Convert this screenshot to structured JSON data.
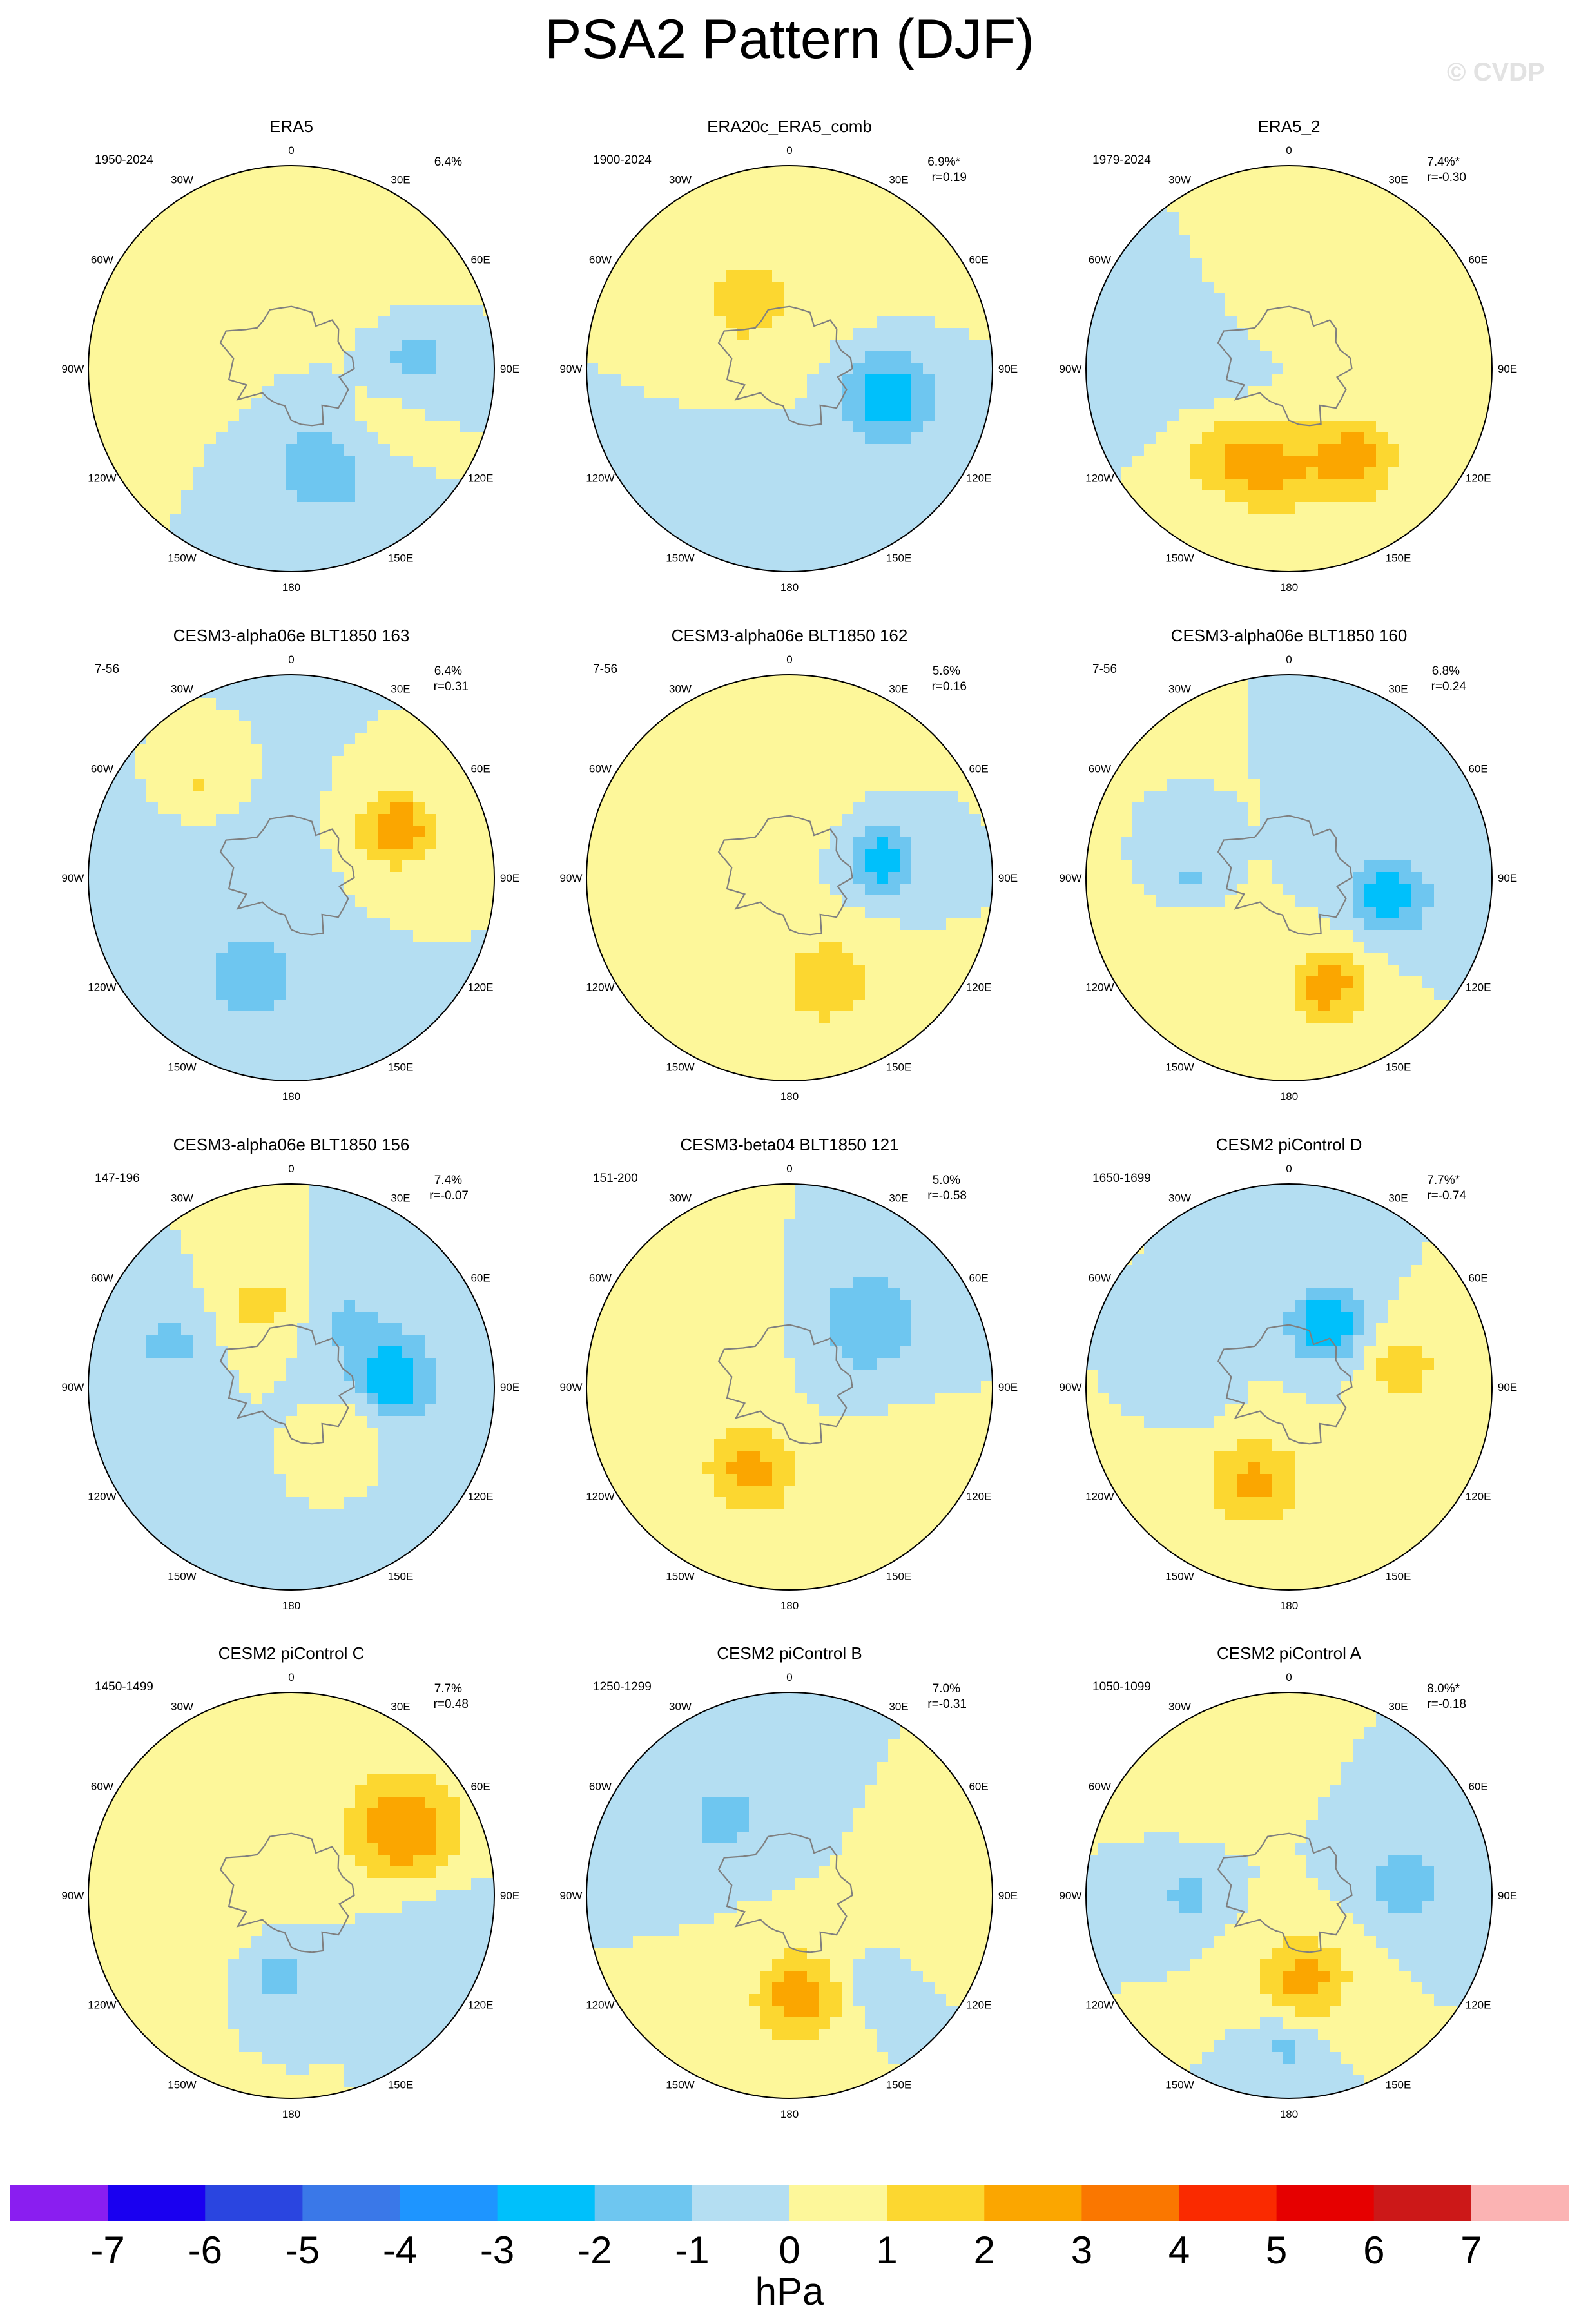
{
  "title": "PSA2 Pattern (DJF)",
  "watermark": "© CVDP",
  "lon_labels": [
    "0",
    "30E",
    "60E",
    "90E",
    "120E",
    "150E",
    "180",
    "150W",
    "120W",
    "90W",
    "60W",
    "30W"
  ],
  "chart_data": {
    "type": "heatmap",
    "projection": "south-polar-stereographic",
    "variable": "PSA2 pattern of sea level pressure regression",
    "unit_label": "hPa",
    "colorbar": {
      "ticks": [
        "-7",
        "-6",
        "-5",
        "-4",
        "-3",
        "-2",
        "-1",
        "0",
        "1",
        "2",
        "3",
        "4",
        "5",
        "6",
        "7"
      ],
      "colors": [
        "#8a1ef0",
        "#1a00f0",
        "#2a45e0",
        "#3a78e8",
        "#1e95ff",
        "#00c0fb",
        "#6ec6f0",
        "#b4def2",
        "#fdf79a",
        "#fcd730",
        "#fba600",
        "#fa7700",
        "#fa2a00",
        "#e60000",
        "#cc1818",
        "#fbb3b3"
      ]
    },
    "panels": [
      {
        "title": "ERA5",
        "years": "1950-2024",
        "pct": "6.4%",
        "corr": "",
        "base": 0,
        "blobs": [
          {
            "lon": 85,
            "lat": -48,
            "a": -1.5,
            "s": 11
          },
          {
            "lon": 160,
            "lat": -55,
            "a": -1.6,
            "s": 15
          },
          {
            "lon": 120,
            "lat": -55,
            "a": 0.8,
            "s": 12
          },
          {
            "lon": -60,
            "lat": -50,
            "a": 0.8,
            "s": 20
          },
          {
            "lon": 40,
            "lat": -45,
            "a": 0.6,
            "s": 18
          }
        ]
      },
      {
        "title": "ERA20c_ERA5_comb",
        "years": "1900-2024",
        "pct": "6.9%*",
        "corr": "r=0.19",
        "base": 0,
        "blobs": [
          {
            "lon": 105,
            "lat": -55,
            "a": -2.7,
            "s": 12
          },
          {
            "lon": -30,
            "lat": -60,
            "a": 1.4,
            "s": 8
          },
          {
            "lon": -70,
            "lat": -70,
            "a": 0.8,
            "s": 20
          },
          {
            "lon": -150,
            "lat": -45,
            "a": -0.7,
            "s": 25
          },
          {
            "lon": 30,
            "lat": -45,
            "a": 0.6,
            "s": 20
          }
        ]
      },
      {
        "title": "ERA5_2",
        "years": "1979-2024",
        "pct": "7.4%*",
        "corr": "r=-0.30",
        "base": 0,
        "blobs": [
          {
            "lon": 145,
            "lat": -52,
            "a": 2.5,
            "s": 11
          },
          {
            "lon": -170,
            "lat": -55,
            "a": 2.2,
            "s": 11
          },
          {
            "lon": -140,
            "lat": -52,
            "a": 1.5,
            "s": 10
          },
          {
            "lon": -90,
            "lat": -55,
            "a": -0.6,
            "s": 14
          },
          {
            "lon": 0,
            "lat": -60,
            "a": 0.7,
            "s": 12
          }
        ]
      },
      {
        "title": "CESM3-alpha06e BLT1850 163",
        "years": "7-56",
        "pct": "6.4%",
        "corr": "r=0.31",
        "base": 0,
        "blobs": [
          {
            "lon": 65,
            "lat": -50,
            "a": 3.0,
            "s": 9
          },
          {
            "lon": -160,
            "lat": -52,
            "a": -1.8,
            "s": 11
          },
          {
            "lon": -45,
            "lat": -45,
            "a": 1.2,
            "s": 9
          },
          {
            "lon": -90,
            "lat": -60,
            "a": -0.7,
            "s": 20
          }
        ]
      },
      {
        "title": "CESM3-alpha06e BLT1850 162",
        "years": "7-56",
        "pct": "5.6%",
        "corr": "r=0.16",
        "base": 0,
        "blobs": [
          {
            "lon": 80,
            "lat": -58,
            "a": -2.8,
            "s": 8
          },
          {
            "lon": 160,
            "lat": -52,
            "a": 1.7,
            "s": 12
          },
          {
            "lon": -30,
            "lat": -50,
            "a": 0.7,
            "s": 20
          },
          {
            "lon": -120,
            "lat": -50,
            "a": 0.7,
            "s": 15
          }
        ]
      },
      {
        "title": "CESM3-alpha06e BLT1850 160",
        "years": "7-56",
        "pct": "6.8%",
        "corr": "r=0.24",
        "base": 0,
        "blobs": [
          {
            "lon": 100,
            "lat": -55,
            "a": -2.6,
            "s": 10
          },
          {
            "lon": 160,
            "lat": -50,
            "a": 2.5,
            "s": 10
          },
          {
            "lon": -90,
            "lat": -55,
            "a": -1.2,
            "s": 6
          },
          {
            "lon": -130,
            "lat": -40,
            "a": 0.7,
            "s": 12
          }
        ]
      },
      {
        "title": "CESM3-alpha06e BLT1850 156",
        "years": "147-196",
        "pct": "7.4%",
        "corr": "r=-0.07",
        "base": 0,
        "blobs": [
          {
            "lon": 85,
            "lat": -55,
            "a": -2.8,
            "s": 11
          },
          {
            "lon": -20,
            "lat": -60,
            "a": 1.6,
            "s": 8
          },
          {
            "lon": -70,
            "lat": -45,
            "a": -1.5,
            "s": 8
          },
          {
            "lon": 120,
            "lat": -65,
            "a": 1.2,
            "s": 7
          },
          {
            "lon": 40,
            "lat": -60,
            "a": -1.1,
            "s": 9
          }
        ]
      },
      {
        "title": "CESM3-beta04 BLT1850 121",
        "years": "151-200",
        "pct": "5.0%",
        "corr": "r=-0.58",
        "base": 0,
        "blobs": [
          {
            "lon": -155,
            "lat": -58,
            "a": 2.4,
            "s": 11
          },
          {
            "lon": 50,
            "lat": -55,
            "a": -1.8,
            "s": 14
          },
          {
            "lon": -60,
            "lat": -60,
            "a": 0.6,
            "s": 18
          },
          {
            "lon": 130,
            "lat": -40,
            "a": 0.6,
            "s": 15
          }
        ]
      },
      {
        "title": "CESM2 piControl D",
        "years": "1650-1699",
        "pct": "7.7%*",
        "corr": "r=-0.74",
        "base": 0,
        "blobs": [
          {
            "lon": 30,
            "lat": -65,
            "a": -3.0,
            "s": 9
          },
          {
            "lon": -160,
            "lat": -55,
            "a": 2.2,
            "s": 12
          },
          {
            "lon": 80,
            "lat": -50,
            "a": 1.6,
            "s": 9
          },
          {
            "lon": -90,
            "lat": -60,
            "a": -1.0,
            "s": 7
          }
        ]
      },
      {
        "title": "CESM2 piControl C",
        "years": "1450-1499",
        "pct": "7.7%",
        "corr": "r=0.48",
        "base": 0,
        "blobs": [
          {
            "lon": 60,
            "lat": -45,
            "a": 3.0,
            "s": 14
          },
          {
            "lon": -170,
            "lat": -62,
            "a": -1.5,
            "s": 9
          },
          {
            "lon": -90,
            "lat": -55,
            "a": 0.8,
            "s": 20
          },
          {
            "lon": 100,
            "lat": -40,
            "a": -0.7,
            "s": 15
          }
        ]
      },
      {
        "title": "CESM2 piControl B",
        "years": "1250-1299",
        "pct": "7.0%",
        "corr": "r=-0.31",
        "base": 0,
        "blobs": [
          {
            "lon": 175,
            "lat": -55,
            "a": 2.6,
            "s": 11
          },
          {
            "lon": -40,
            "lat": -55,
            "a": -1.5,
            "s": 10
          },
          {
            "lon": 100,
            "lat": -40,
            "a": 0.7,
            "s": 10
          },
          {
            "lon": 135,
            "lat": -45,
            "a": -0.8,
            "s": 8
          }
        ]
      },
      {
        "title": "CESM2 piControl A",
        "years": "1050-1099",
        "pct": "8.0%*",
        "corr": "r=-0.18",
        "base": 0,
        "blobs": [
          {
            "lon": 170,
            "lat": -60,
            "a": 2.5,
            "s": 11
          },
          {
            "lon": 85,
            "lat": -50,
            "a": -1.6,
            "s": 10
          },
          {
            "lon": -90,
            "lat": -55,
            "a": -1.3,
            "s": 7
          },
          {
            "lon": 180,
            "lat": -38,
            "a": -1.4,
            "s": 8
          },
          {
            "lon": -30,
            "lat": -40,
            "a": 0.7,
            "s": 10
          }
        ]
      }
    ]
  }
}
